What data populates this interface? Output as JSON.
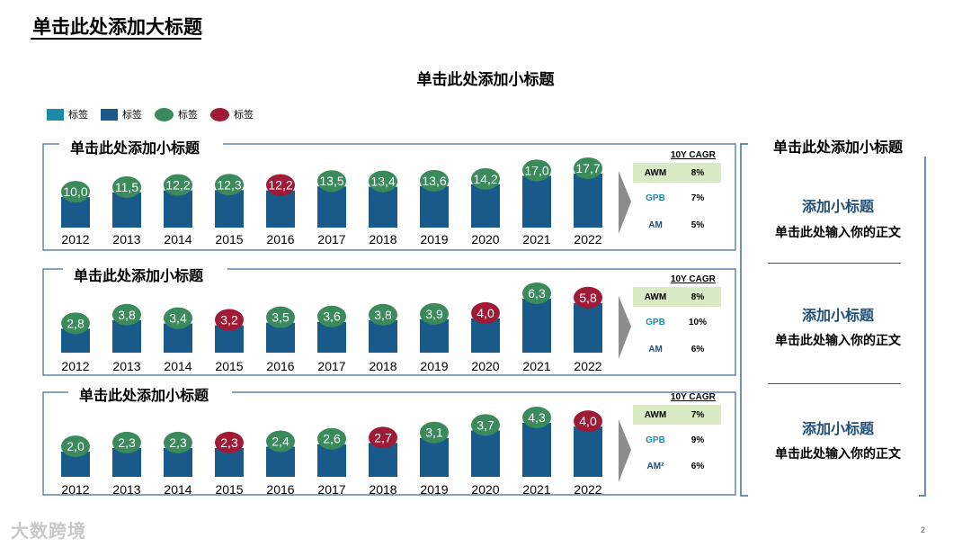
{
  "title": "单击此处添加大标题",
  "subtitle": "单击此处添加小标题",
  "legend": [
    {
      "label": "标签",
      "shape": "square",
      "color": "#1c8aa8"
    },
    {
      "label": "标签",
      "shape": "square",
      "color": "#1a5a8a"
    },
    {
      "label": "标签",
      "shape": "oval",
      "color": "#3a8a5c"
    },
    {
      "label": "标签",
      "shape": "oval",
      "color": "#9e1a35"
    }
  ],
  "colors": {
    "bar": "#1a5a8a",
    "bubble_green": "#3a8a5c",
    "bubble_red": "#9e1a35",
    "frame": "#3e6b99",
    "arrow": "#8c8c8c",
    "cagr_label": "#1c8aa8",
    "cagr_highlight": "#d9ebc4"
  },
  "chart_data": [
    {
      "type": "bar",
      "title": "单击此处添加小标题",
      "categories": [
        "2012",
        "2013",
        "2014",
        "2015",
        "2016",
        "2017",
        "2018",
        "2019",
        "2020",
        "2021",
        "2022"
      ],
      "values": [
        10.0,
        11.5,
        12.2,
        12.3,
        12.2,
        13.5,
        13.4,
        13.6,
        14.2,
        17.0,
        17.7
      ],
      "labels": [
        "10,0",
        "11,5",
        "12,2",
        "12,3",
        "12,2",
        "13,5",
        "13,4",
        "13,6",
        "14,2",
        "17,0",
        "17,7"
      ],
      "bubble_colors": [
        "green",
        "green",
        "green",
        "green",
        "red",
        "green",
        "green",
        "green",
        "green",
        "green",
        "green"
      ],
      "cagr_title": "10Y CAGR",
      "cagr": [
        {
          "label": "AWM",
          "value": "8%",
          "highlight": true
        },
        {
          "label": "GPB",
          "value": "7%",
          "highlight": false
        },
        {
          "label": "AM",
          "value": "5%",
          "highlight": false
        }
      ]
    },
    {
      "type": "bar",
      "title": "单击此处添加小标题",
      "categories": [
        "2012",
        "2013",
        "2014",
        "2015",
        "2016",
        "2017",
        "2018",
        "2019",
        "2020",
        "2021",
        "2022"
      ],
      "values": [
        2.8,
        3.8,
        3.4,
        3.2,
        3.5,
        3.6,
        3.8,
        3.9,
        4.0,
        6.3,
        5.8
      ],
      "labels": [
        "2,8",
        "3,8",
        "3,4",
        "3,2",
        "3,5",
        "3,6",
        "3,8",
        "3,9",
        "4,0",
        "6,3",
        "5,8"
      ],
      "bubble_colors": [
        "green",
        "green",
        "green",
        "red",
        "green",
        "green",
        "green",
        "green",
        "red",
        "green",
        "red"
      ],
      "cagr_title": "10Y CAGR",
      "cagr": [
        {
          "label": "AWM",
          "value": "8%",
          "highlight": true
        },
        {
          "label": "GPB",
          "value": "10%",
          "highlight": false
        },
        {
          "label": "AM",
          "value": "6%",
          "highlight": false
        }
      ]
    },
    {
      "type": "bar",
      "title": "单击此处添加小标题",
      "categories": [
        "2012",
        "2013",
        "2014",
        "2015",
        "2016",
        "2017",
        "2018",
        "2019",
        "2020",
        "2021",
        "2022"
      ],
      "values": [
        2.0,
        2.3,
        2.3,
        2.3,
        2.4,
        2.6,
        2.7,
        3.1,
        3.7,
        4.3,
        4.0
      ],
      "labels": [
        "2,0",
        "2,3",
        "2,3",
        "2,3",
        "2,4",
        "2,6",
        "2,7",
        "3,1",
        "3,7",
        "4,3",
        "4,0"
      ],
      "bubble_colors": [
        "green",
        "green",
        "green",
        "red",
        "green",
        "green",
        "red",
        "green",
        "green",
        "green",
        "red"
      ],
      "cagr_title": "10Y CAGR",
      "cagr": [
        {
          "label": "AWM",
          "value": "7%",
          "highlight": true
        },
        {
          "label": "GPB",
          "value": "9%",
          "highlight": false
        },
        {
          "label": "AM²",
          "value": "6%",
          "highlight": false
        }
      ]
    }
  ],
  "side_panel": {
    "heading": "单击此处添加小标题",
    "items": [
      {
        "title": "添加小标题",
        "body": "单击此处输入你的正文"
      },
      {
        "title": "添加小标题",
        "body": "单击此处输入你的正文"
      },
      {
        "title": "添加小标题",
        "body": "单击此处输入你的正文"
      }
    ]
  },
  "watermark": "大数跨境",
  "page_number": "2"
}
